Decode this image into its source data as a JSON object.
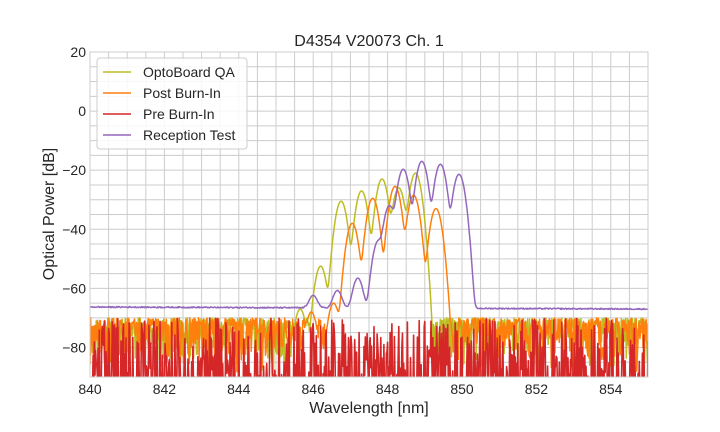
{
  "chart_data": {
    "type": "line",
    "title": "D4354 V20073 Ch. 1",
    "xlabel": "Wavelength [nm]",
    "ylabel": "Optical Power [dB]",
    "xlim": [
      840,
      855
    ],
    "ylim": [
      -90,
      20
    ],
    "xticks": [
      840,
      842,
      844,
      846,
      848,
      850,
      852,
      854
    ],
    "yticks": [
      -80,
      -60,
      -40,
      -20,
      0,
      20
    ],
    "xtick_labels": [
      "840",
      "842",
      "844",
      "846",
      "848",
      "850",
      "852",
      "854"
    ],
    "ytick_labels": [
      "−80",
      "−60",
      "−40",
      "−20",
      "0",
      "20"
    ],
    "grid": true,
    "minor_grid": {
      "x_step": 0.5,
      "y_step": 5
    },
    "legend_position": "top-left",
    "series": [
      {
        "name": "OptoBoard QA",
        "color": "#bcbd22",
        "noise_floor": {
          "mean": -80,
          "top": -70,
          "bottom": -90
        },
        "baseline_dB": -68,
        "band": [
          845.9,
          848.95
        ],
        "peaks": [
          {
            "x": 845.65,
            "y": -67
          },
          {
            "x": 846.2,
            "y": -52.5
          },
          {
            "x": 846.75,
            "y": -30.5
          },
          {
            "x": 847.3,
            "y": -27
          },
          {
            "x": 847.85,
            "y": -23
          },
          {
            "x": 848.3,
            "y": -26
          },
          {
            "x": 848.75,
            "y": -21
          }
        ]
      },
      {
        "name": "Post Burn-In",
        "color": "#ff7f0e",
        "noise_floor": {
          "mean": -80,
          "top": -70,
          "bottom": -90
        },
        "baseline_dB": -68,
        "band": [
          846.3,
          849.6
        ],
        "peaks": [
          {
            "x": 845.95,
            "y": -68
          },
          {
            "x": 846.55,
            "y": -65
          },
          {
            "x": 847.05,
            "y": -38
          },
          {
            "x": 847.6,
            "y": -29.5
          },
          {
            "x": 848.2,
            "y": -25.5
          },
          {
            "x": 848.7,
            "y": -28.5
          },
          {
            "x": 849.3,
            "y": -33
          }
        ]
      },
      {
        "name": "Pre Burn-In",
        "color": "#d62728",
        "noise_floor": {
          "mean": -82,
          "top": -70,
          "bottom": -90
        },
        "baseline_dB": null,
        "band": null,
        "peaks": []
      },
      {
        "name": "Reception Test",
        "color": "#9467bd",
        "noise_floor": null,
        "baseline_left_dB": -66.3,
        "baseline_right_dB": -67,
        "band": [
          846.0,
          850.2
        ],
        "peaks": [
          {
            "x": 846.0,
            "y": -64.5
          },
          {
            "x": 846.65,
            "y": -62
          },
          {
            "x": 847.2,
            "y": -57
          },
          {
            "x": 847.75,
            "y": -44
          },
          {
            "x": 848.05,
            "y": -32
          },
          {
            "x": 848.42,
            "y": -19.7
          },
          {
            "x": 848.92,
            "y": -17
          },
          {
            "x": 849.42,
            "y": -18
          },
          {
            "x": 849.92,
            "y": -21.4
          }
        ]
      }
    ]
  }
}
